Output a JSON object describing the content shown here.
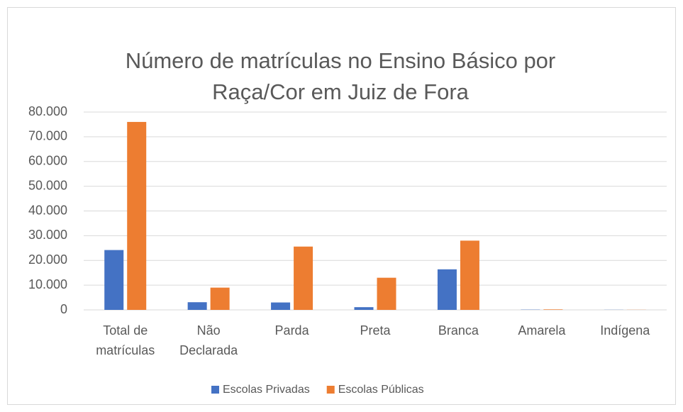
{
  "chart_data": {
    "type": "bar",
    "title": "Número de matrículas no Ensino Básico por Raça/Cor em Juiz de Fora",
    "categories": [
      "Total de matrículas",
      "Não Declarada",
      "Parda",
      "Preta",
      "Branca",
      "Amarela",
      "Indígena"
    ],
    "series": [
      {
        "name": "Escolas Privadas",
        "color": "#4472c4",
        "values": [
          24200,
          3100,
          3000,
          1100,
          16400,
          100,
          50
        ]
      },
      {
        "name": "Escolas Públicas",
        "color": "#ed7d31",
        "values": [
          76000,
          9000,
          25600,
          13000,
          28000,
          200,
          50
        ]
      }
    ],
    "ylim": [
      0,
      80000
    ],
    "yticks": [
      0,
      {
        "value": 10000,
        "label": "10.000"
      },
      {
        "value": 20000,
        "label": "20.000"
      },
      {
        "value": 30000,
        "label": "30.000"
      },
      {
        "value": 40000,
        "label": "40.000"
      },
      {
        "value": 50000,
        "label": "50.000"
      },
      {
        "value": 60000,
        "label": "60.000"
      },
      {
        "value": 70000,
        "label": "70.000"
      },
      {
        "value": 80000,
        "label": "80.000"
      }
    ],
    "grid": true,
    "legend": "bottom"
  }
}
